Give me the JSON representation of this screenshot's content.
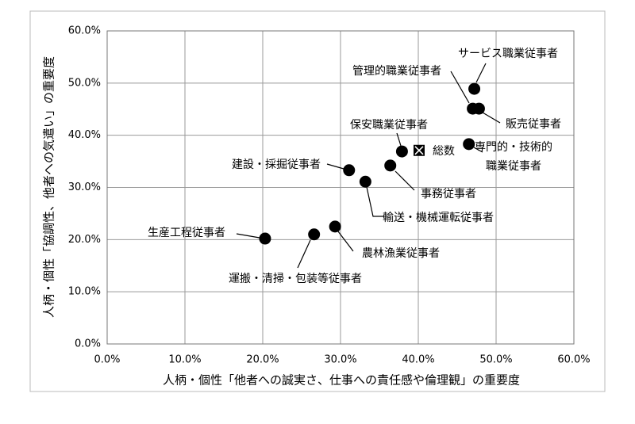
{
  "chart_data": {
    "type": "scatter",
    "x_label": "人柄・個性「他者への誠実さ、仕事への責任感や倫理観」の重要度",
    "y_label": "人柄・個性「協調性、他者への気遣い」の重要度",
    "xlim": [
      0,
      60
    ],
    "ylim": [
      0,
      60
    ],
    "xticks": [
      {
        "value": 0,
        "label": "0.0%"
      },
      {
        "value": 10,
        "label": "10.0%"
      },
      {
        "value": 20,
        "label": "20.0%"
      },
      {
        "value": 30,
        "label": "30.0%"
      },
      {
        "value": 40,
        "label": "40.0%"
      },
      {
        "value": 50,
        "label": "50.0%"
      },
      {
        "value": 60,
        "label": "60.0%"
      }
    ],
    "yticks": [
      {
        "value": 0,
        "label": "0.0%"
      },
      {
        "value": 10,
        "label": "10.0%"
      },
      {
        "value": 20,
        "label": "20.0%"
      },
      {
        "value": 30,
        "label": "30.0%"
      },
      {
        "value": 40,
        "label": "40.0%"
      },
      {
        "value": 50,
        "label": "50.0%"
      },
      {
        "value": 60,
        "label": "60.0%"
      }
    ],
    "grid": true,
    "color": "#000000",
    "points": [
      {
        "label": "サービス職業従事者",
        "x": 47.2,
        "y": 48.9
      },
      {
        "label": "管理的職業従事者",
        "x": 47.0,
        "y": 45.1
      },
      {
        "label": "販売従事者",
        "x": 47.8,
        "y": 45.1
      },
      {
        "label": [
          "専門的・技術的",
          "職業従事者"
        ],
        "x": 46.5,
        "y": 38.3
      },
      {
        "label": "保安職業従事者",
        "x": 37.9,
        "y": 36.9
      },
      {
        "label": "総数",
        "x": 40.1,
        "y": 37.1,
        "marker": "square-x"
      },
      {
        "label": "事務従事者",
        "x": 36.4,
        "y": 34.2
      },
      {
        "label": "建設・採掘従事者",
        "x": 31.1,
        "y": 33.3
      },
      {
        "label": "輸送・機械運転従事者",
        "x": 33.2,
        "y": 31.1
      },
      {
        "label": "生産工程従事者",
        "x": 20.3,
        "y": 20.2
      },
      {
        "label": "運搬・清掃・包装等従事者",
        "x": 26.6,
        "y": 21.0
      },
      {
        "label": "農林漁業従事者",
        "x": 29.3,
        "y": 22.5
      }
    ]
  }
}
